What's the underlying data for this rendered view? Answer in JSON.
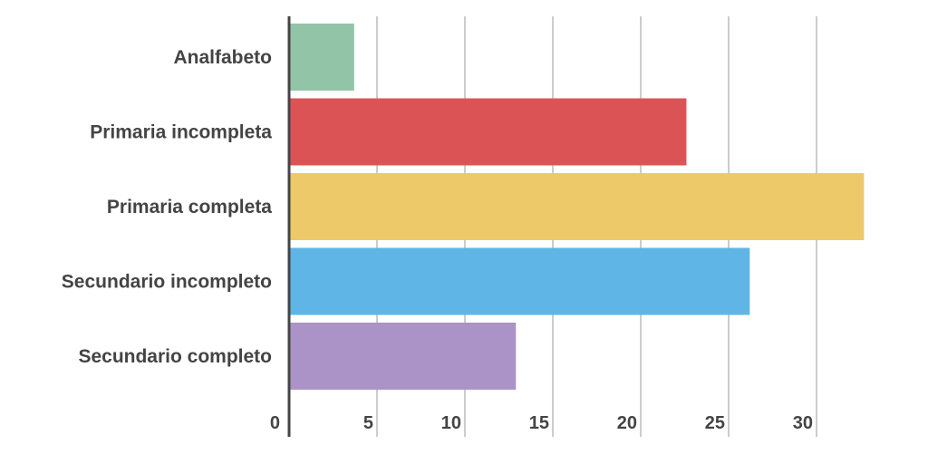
{
  "chart_data": {
    "type": "bar",
    "orientation": "horizontal",
    "title": "",
    "xlabel": "",
    "ylabel": "",
    "categories": [
      "Analfabeto",
      "Primaria incompleta",
      "Primaria completa",
      "Secundario incompleto",
      "Secundario completo"
    ],
    "values": [
      3.7,
      22.6,
      32.7,
      26.2,
      12.9
    ],
    "colors": [
      "#92c4a8",
      "#dc5356",
      "#edc96a",
      "#5fb6e6",
      "#ab93c8"
    ],
    "xlim": [
      0,
      33
    ],
    "xticks": [
      "0",
      "5",
      "10",
      "15",
      "20",
      "25",
      "30"
    ],
    "grid": true,
    "legend": "none"
  }
}
